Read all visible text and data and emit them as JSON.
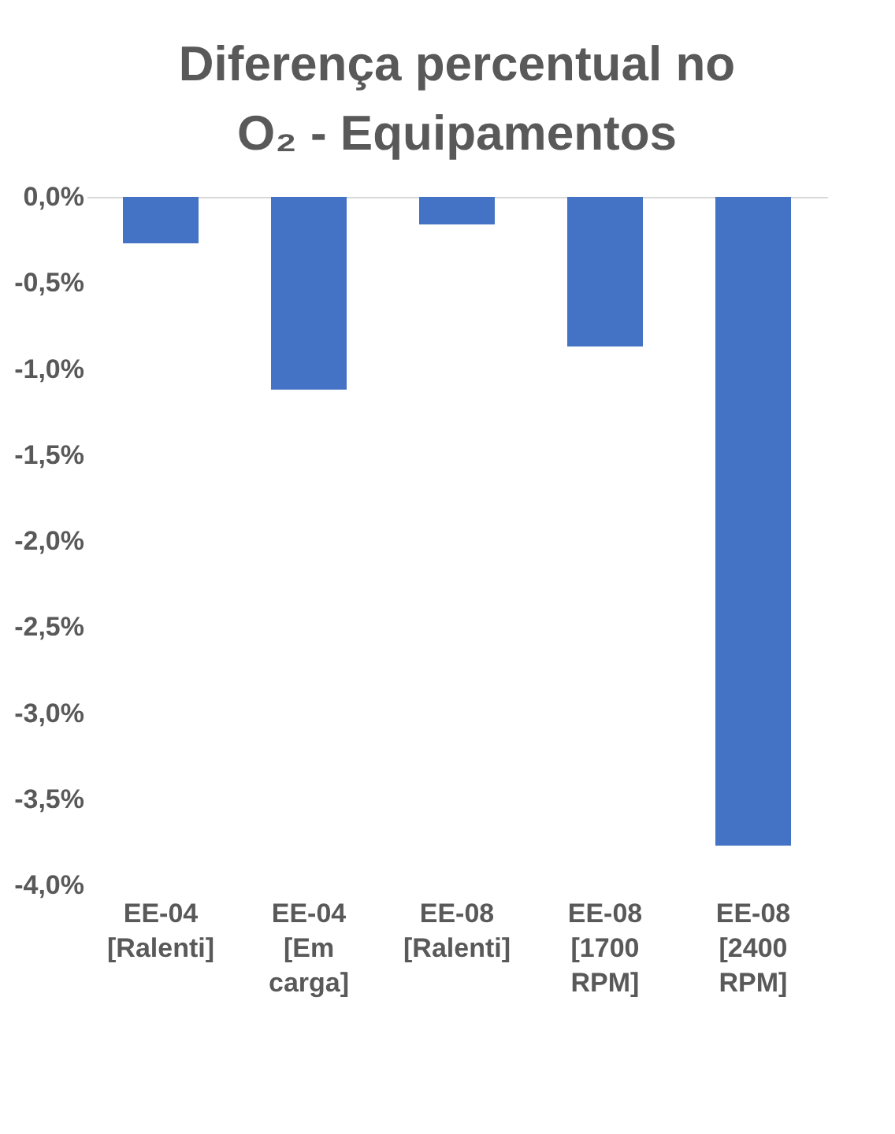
{
  "chart_data": {
    "type": "bar",
    "title": "Diferença percentual no O₂ - Equipamentos",
    "categories": [
      "EE-04 [Ralenti]",
      "EE-04 [Em carga]",
      "EE-08 [Ralenti]",
      "EE-08 [1700 RPM]",
      "EE-08 [2400 RPM]"
    ],
    "values": [
      -0.27,
      -1.12,
      -0.16,
      -0.87,
      -3.77
    ],
    "color": "#4472c4",
    "ylim": [
      -4.0,
      0.0
    ],
    "yticks": [
      {
        "value": 0.0,
        "label": "0,0%"
      },
      {
        "value": -0.5,
        "label": "-0,5%"
      },
      {
        "value": -1.0,
        "label": "-1,0%"
      },
      {
        "value": -1.5,
        "label": "-1,5%"
      },
      {
        "value": -2.0,
        "label": "-2,0%"
      },
      {
        "value": -2.5,
        "label": "-2,5%"
      },
      {
        "value": -3.0,
        "label": "-3,0%"
      },
      {
        "value": -3.5,
        "label": "-3,5%"
      },
      {
        "value": -4.0,
        "label": "-4,0%"
      }
    ],
    "grid": false
  }
}
